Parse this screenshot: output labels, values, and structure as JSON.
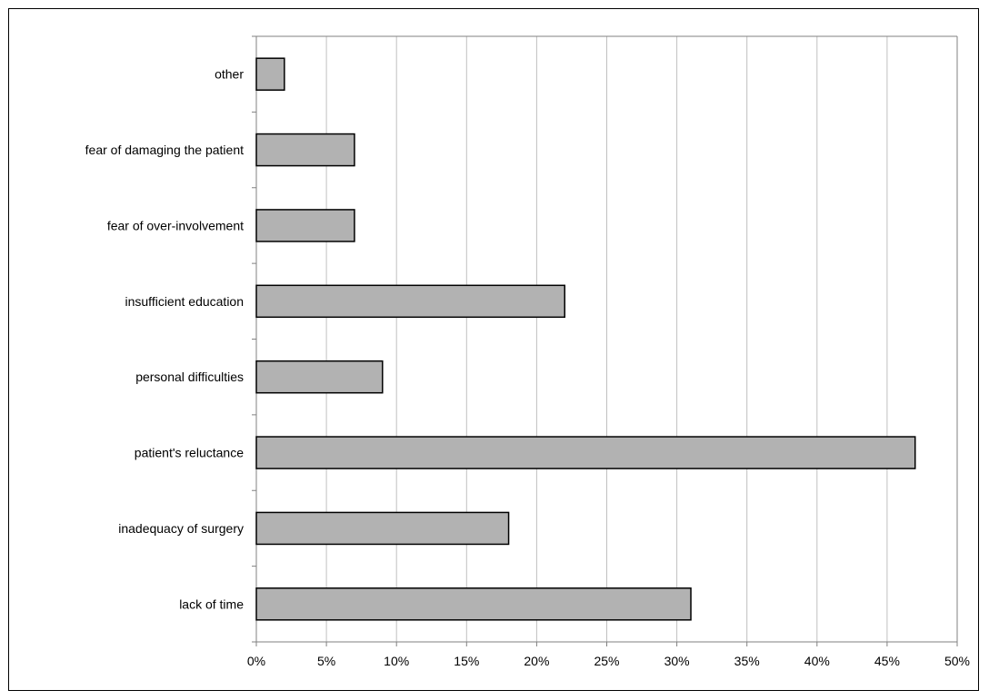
{
  "chart_data": {
    "type": "bar",
    "orientation": "horizontal",
    "categories": [
      "other",
      "fear of damaging the patient",
      "fear of over-involvement",
      "insufficient education",
      "personal difficulties",
      "patient's reluctance",
      "inadequacy of surgery",
      "lack of time"
    ],
    "values": [
      2,
      7,
      7,
      22,
      9,
      47,
      18,
      31
    ],
    "unit": "%",
    "xlim": [
      0,
      50
    ],
    "xticks": [
      0,
      5,
      10,
      15,
      20,
      25,
      30,
      35,
      40,
      45,
      50
    ],
    "xtick_labels": [
      "0%",
      "5%",
      "10%",
      "15%",
      "20%",
      "25%",
      "30%",
      "35%",
      "40%",
      "45%",
      "50%"
    ],
    "title": "",
    "xlabel": "",
    "ylabel": "",
    "grid": "vertical",
    "legend": "none",
    "bar_color": "#b2b2b2",
    "bar_edge_color": "#000000",
    "grid_color": "#c0c0c0",
    "axis_color": "#808080"
  }
}
